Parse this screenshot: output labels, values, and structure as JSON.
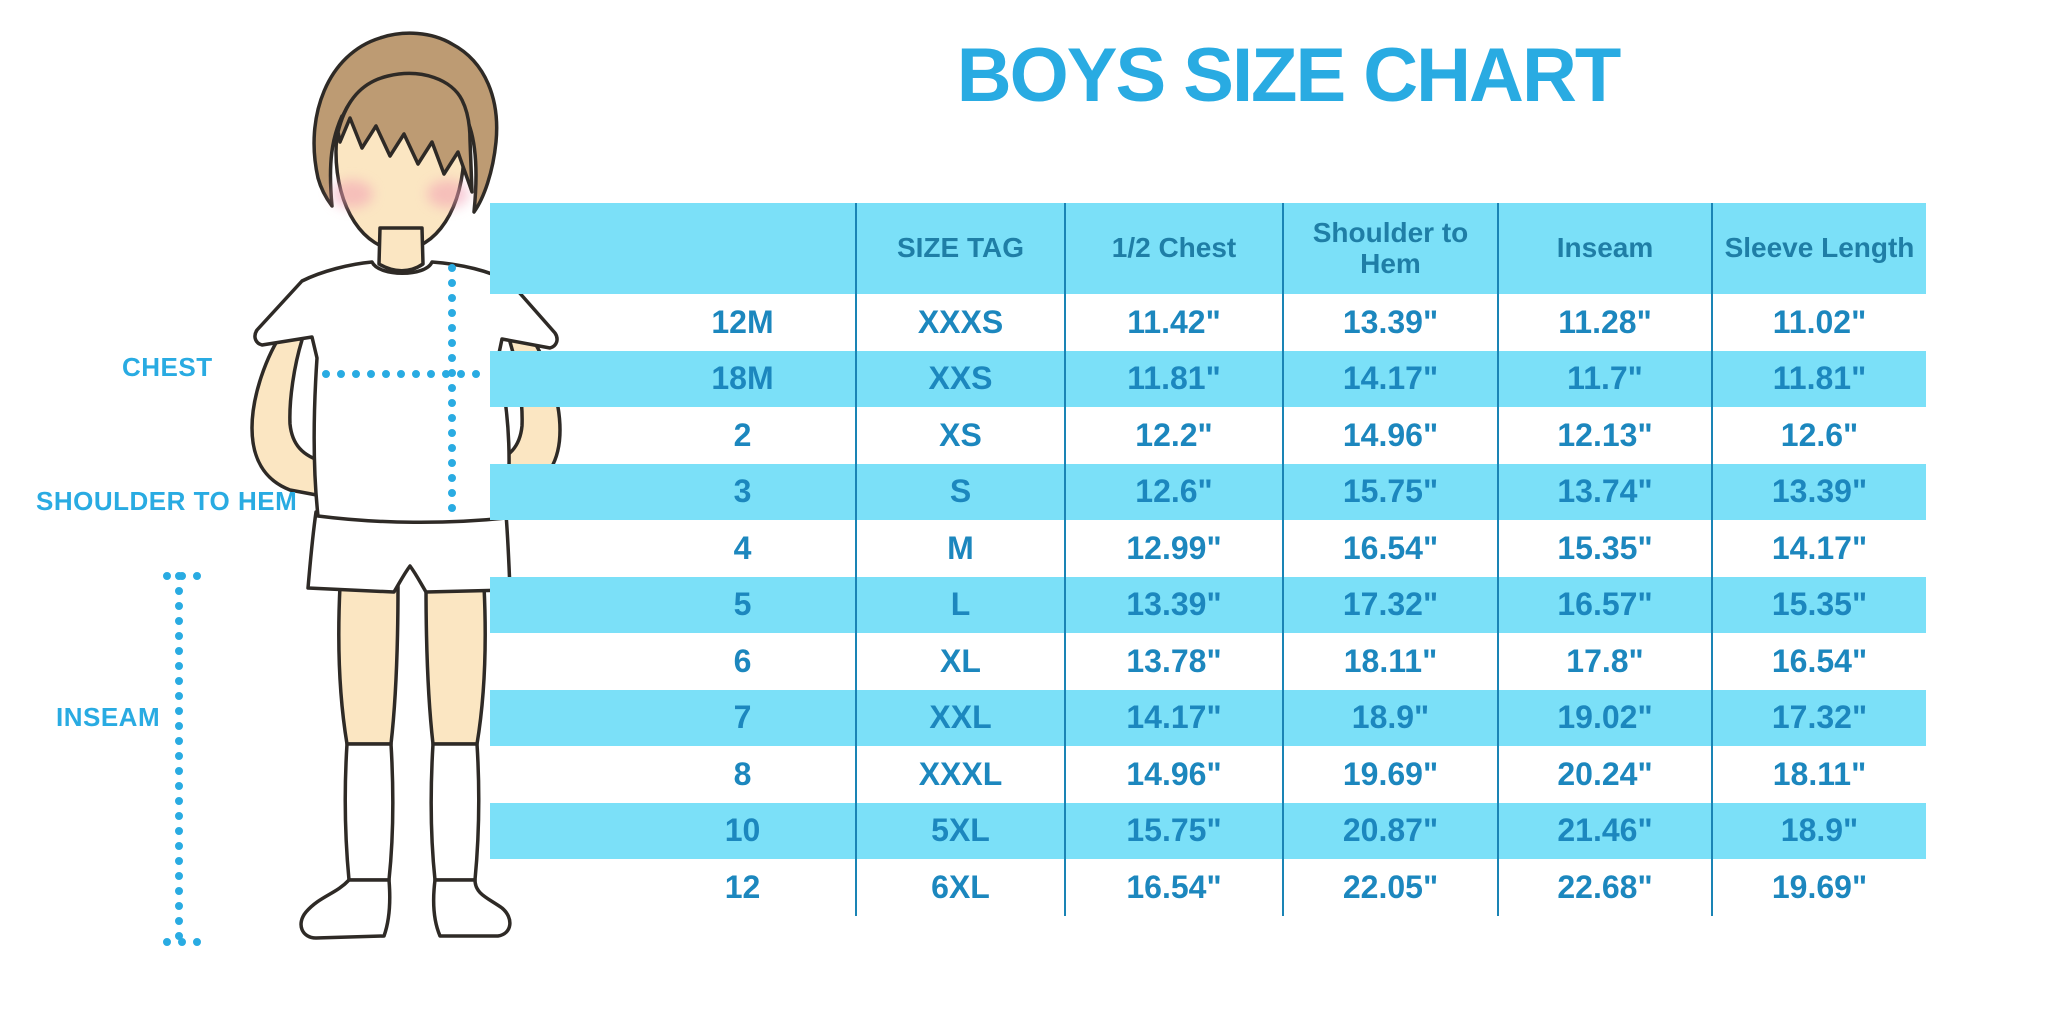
{
  "page": {
    "title": "BOYS SIZE CHART"
  },
  "colors": {
    "accent": "#29ABE2",
    "table_fill": "#7BE0F8",
    "header_text": "#1F7EA6",
    "cell_text": "#1C87BE",
    "line": "#1A84B5",
    "skin": "#FBE6C2",
    "hair": "#BD9B73",
    "blush": "#F29FB4",
    "outline": "#2E2A26"
  },
  "figure": {
    "chest_label": "CHEST",
    "shoulder_to_hem_label": "SHOULDER TO HEM",
    "inseam_label": "INSEAM"
  },
  "chart_data": {
    "type": "table",
    "title": "BOYS SIZE CHART",
    "columns": [
      "",
      "SIZE TAG",
      "1/2 Chest",
      "Shoulder to Hem",
      "Inseam",
      "Sleeve Length"
    ],
    "rows": [
      [
        "12M",
        "XXXS",
        "11.42\"",
        "13.39\"",
        "11.28\"",
        "11.02\""
      ],
      [
        "18M",
        "XXS",
        "11.81\"",
        "14.17\"",
        "11.7\"",
        "11.81\""
      ],
      [
        "2",
        "XS",
        "12.2\"",
        "14.96\"",
        "12.13\"",
        "12.6\""
      ],
      [
        "3",
        "S",
        "12.6\"",
        "15.75\"",
        "13.74\"",
        "13.39\""
      ],
      [
        "4",
        "M",
        "12.99\"",
        "16.54\"",
        "15.35\"",
        "14.17\""
      ],
      [
        "5",
        "L",
        "13.39\"",
        "17.32\"",
        "16.57\"",
        "15.35\""
      ],
      [
        "6",
        "XL",
        "13.78\"",
        "18.11\"",
        "17.8\"",
        "16.54\""
      ],
      [
        "7",
        "XXL",
        "14.17\"",
        "18.9\"",
        "19.02\"",
        "17.32\""
      ],
      [
        "8",
        "XXXL",
        "14.96\"",
        "19.69\"",
        "20.24\"",
        "18.11\""
      ],
      [
        "10",
        "5XL",
        "15.75\"",
        "20.87\"",
        "21.46\"",
        "18.9\""
      ],
      [
        "12",
        "6XL",
        "16.54\"",
        "22.05\"",
        "22.68\"",
        "19.69\""
      ]
    ],
    "layout": {
      "zebra_striping": true,
      "first_data_row_background": "white",
      "gridlines": "vertical-only"
    }
  }
}
